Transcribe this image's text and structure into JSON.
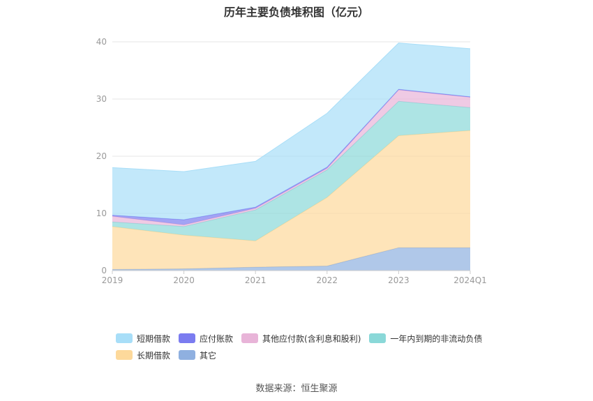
{
  "chart_data": {
    "type": "area",
    "stacked": true,
    "title": "历年主要负债堆积图（亿元）",
    "categories": [
      "2019",
      "2020",
      "2021",
      "2022",
      "2023",
      "2024Q1"
    ],
    "ylim": [
      0,
      40
    ],
    "yticks": [
      0,
      10,
      20,
      30,
      40
    ],
    "grid": true,
    "legend_position": "bottom",
    "series": [
      {
        "name": "其它",
        "color": "#8fb0e0",
        "values": [
          0.2,
          0.3,
          0.6,
          0.8,
          4.0,
          4.0
        ]
      },
      {
        "name": "长期借款",
        "color": "#fdd99b",
        "values": [
          7.5,
          5.9,
          4.6,
          12.0,
          19.6,
          20.5
        ]
      },
      {
        "name": "一年内到期的非流动负债",
        "color": "#8ad8d8",
        "values": [
          0.8,
          1.5,
          5.4,
          4.8,
          6.0,
          4.0
        ]
      },
      {
        "name": "其他应付款(含利息和股利)",
        "color": "#e8b4d8",
        "values": [
          1.0,
          0.3,
          0.3,
          0.3,
          2.0,
          1.8
        ]
      },
      {
        "name": "应付账款",
        "color": "#7b7cf0",
        "values": [
          0.2,
          0.9,
          0.2,
          0.2,
          0.1,
          0.1
        ]
      },
      {
        "name": "短期借款",
        "color": "#a8def8",
        "values": [
          8.3,
          8.4,
          8.0,
          9.4,
          8.1,
          8.4
        ]
      }
    ]
  },
  "legend": {
    "rows": [
      [
        {
          "label": "短期借款",
          "color": "#a8def8"
        },
        {
          "label": "应付账款",
          "color": "#7b7cf0"
        },
        {
          "label": "其他应付款(含利息和股利)",
          "color": "#e8b4d8"
        },
        {
          "label": "一年内到期的非流动负债",
          "color": "#8ad8d8"
        }
      ],
      [
        {
          "label": "长期借款",
          "color": "#fdd99b"
        },
        {
          "label": "其它",
          "color": "#8fb0e0"
        }
      ]
    ]
  },
  "source": "数据来源：恒生聚源"
}
